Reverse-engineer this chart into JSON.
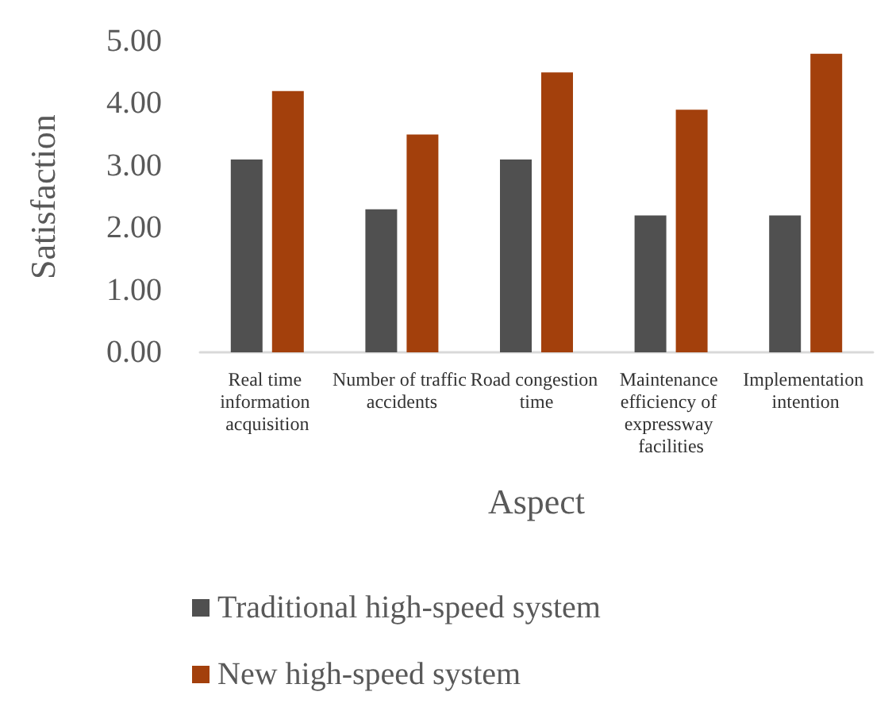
{
  "chart_data": {
    "type": "bar",
    "xlabel": "Aspect",
    "ylabel": "Satisfaction",
    "categories": [
      "Real time information acquisition",
      "Number of traffic accidents",
      "Road congestion time",
      "Maintenance efficiency of expressway facilities",
      "Implementation intention"
    ],
    "series": [
      {
        "name": "Traditional high-speed system",
        "color": "#505050",
        "values": [
          3.1,
          2.3,
          3.1,
          2.2,
          2.2
        ]
      },
      {
        "name": "New high-speed system",
        "color": "#a3400c",
        "values": [
          4.2,
          3.5,
          4.5,
          3.9,
          4.8
        ]
      }
    ],
    "ylim": [
      0,
      5
    ],
    "yticks": [
      {
        "value": 0,
        "label": "0.00"
      },
      {
        "value": 1,
        "label": "1.00"
      },
      {
        "value": 2,
        "label": "2.00"
      },
      {
        "value": 3,
        "label": "3.00"
      },
      {
        "value": 4,
        "label": "4.00"
      },
      {
        "value": 5,
        "label": "5.00"
      }
    ],
    "grid": false,
    "legend": "bottom"
  }
}
